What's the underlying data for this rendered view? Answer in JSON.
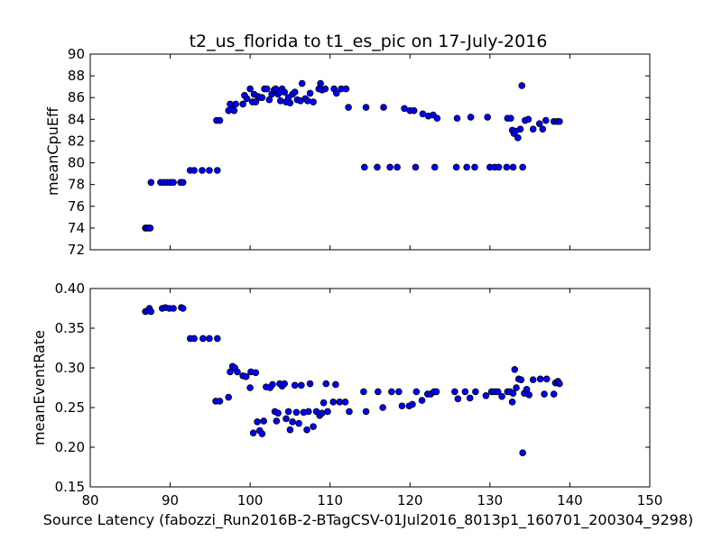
{
  "colors": {
    "marker_fill": "#0000ff",
    "marker_edge": "#000000",
    "frame": "#000000",
    "background": "#ffffff"
  },
  "chart_data": [
    {
      "type": "scatter",
      "title": "t2_us_florida to t1_es_pic on 17-July-2016",
      "xlabel": "",
      "ylabel": "meanCpuEff",
      "xlim": [
        80,
        150
      ],
      "ylim": [
        72,
        90
      ],
      "yticks": [
        "72",
        "74",
        "76",
        "78",
        "80",
        "82",
        "84",
        "86",
        "88",
        "90"
      ],
      "xticks_shown": false,
      "grid": false,
      "points": [
        [
          86.9,
          74.0
        ],
        [
          87.1,
          74.0
        ],
        [
          87.3,
          74.0
        ],
        [
          87.5,
          74.0
        ],
        [
          87.6,
          78.2
        ],
        [
          88.8,
          78.2
        ],
        [
          89.2,
          78.2
        ],
        [
          89.6,
          78.2
        ],
        [
          90.0,
          78.2
        ],
        [
          90.4,
          78.2
        ],
        [
          91.3,
          78.2
        ],
        [
          91.6,
          78.2
        ],
        [
          92.5,
          79.3
        ],
        [
          93.0,
          79.3
        ],
        [
          94.0,
          79.3
        ],
        [
          94.9,
          79.3
        ],
        [
          95.9,
          79.3
        ],
        [
          95.8,
          83.9
        ],
        [
          96.2,
          83.9
        ],
        [
          97.3,
          84.8
        ],
        [
          97.5,
          85.4
        ],
        [
          97.8,
          84.9
        ],
        [
          98.0,
          84.8
        ],
        [
          98.2,
          85.4
        ],
        [
          99.1,
          85.4
        ],
        [
          99.3,
          86.2
        ],
        [
          99.6,
          85.9
        ],
        [
          100.0,
          86.8
        ],
        [
          100.3,
          85.6
        ],
        [
          100.5,
          86.3
        ],
        [
          100.7,
          85.6
        ],
        [
          101.0,
          86.1
        ],
        [
          101.2,
          86.0
        ],
        [
          101.5,
          86.0
        ],
        [
          101.8,
          86.8
        ],
        [
          102.1,
          86.8
        ],
        [
          102.4,
          85.8
        ],
        [
          102.7,
          86.3
        ],
        [
          103.0,
          86.7
        ],
        [
          103.2,
          86.8
        ],
        [
          103.5,
          86.3
        ],
        [
          103.7,
          86.5
        ],
        [
          103.8,
          85.7
        ],
        [
          104.0,
          86.8
        ],
        [
          104.3,
          86.5
        ],
        [
          104.5,
          85.6
        ],
        [
          104.8,
          86.0
        ],
        [
          105.0,
          85.5
        ],
        [
          105.3,
          86.3
        ],
        [
          105.6,
          86.5
        ],
        [
          105.9,
          85.8
        ],
        [
          106.3,
          85.7
        ],
        [
          106.5,
          87.3
        ],
        [
          106.9,
          85.9
        ],
        [
          107.2,
          85.7
        ],
        [
          107.5,
          86.4
        ],
        [
          107.9,
          85.6
        ],
        [
          108.6,
          86.8
        ],
        [
          108.8,
          87.3
        ],
        [
          109.0,
          86.7
        ],
        [
          109.4,
          86.8
        ],
        [
          110.5,
          86.8
        ],
        [
          110.8,
          86.4
        ],
        [
          111.4,
          86.8
        ],
        [
          112.0,
          86.8
        ],
        [
          112.3,
          85.1
        ],
        [
          114.5,
          85.1
        ],
        [
          116.7,
          85.1
        ],
        [
          119.3,
          85.0
        ],
        [
          120.0,
          84.8
        ],
        [
          120.5,
          84.8
        ],
        [
          121.6,
          84.5
        ],
        [
          122.3,
          84.3
        ],
        [
          122.9,
          84.4
        ],
        [
          123.4,
          84.1
        ],
        [
          125.9,
          84.1
        ],
        [
          127.6,
          84.2
        ],
        [
          129.7,
          84.2
        ],
        [
          132.2,
          84.1
        ],
        [
          132.6,
          84.1
        ],
        [
          132.8,
          83.0
        ],
        [
          133.0,
          82.7
        ],
        [
          133.2,
          82.9
        ],
        [
          133.5,
          82.3
        ],
        [
          133.8,
          83.1
        ],
        [
          134.0,
          87.1
        ],
        [
          134.4,
          83.9
        ],
        [
          134.8,
          84.0
        ],
        [
          135.4,
          83.1
        ],
        [
          136.2,
          83.6
        ],
        [
          136.6,
          83.1
        ],
        [
          137.0,
          83.9
        ],
        [
          138.0,
          83.8
        ],
        [
          138.4,
          83.8
        ],
        [
          138.7,
          83.8
        ],
        [
          114.3,
          79.6
        ],
        [
          115.9,
          79.6
        ],
        [
          117.5,
          79.6
        ],
        [
          118.4,
          79.6
        ],
        [
          120.7,
          79.6
        ],
        [
          123.1,
          79.6
        ],
        [
          125.8,
          79.6
        ],
        [
          127.1,
          79.6
        ],
        [
          128.1,
          79.6
        ],
        [
          130.0,
          79.6
        ],
        [
          130.6,
          79.6
        ],
        [
          131.1,
          79.6
        ],
        [
          132.1,
          79.6
        ],
        [
          132.9,
          79.6
        ],
        [
          134.1,
          79.6
        ]
      ]
    },
    {
      "type": "scatter",
      "title": "",
      "xlabel": "Source Latency (fabozzi_Run2016B-2-BTagCSV-01Jul2016_8013p1_160701_200304_9298)",
      "ylabel": "meanEventRate",
      "xlim": [
        80,
        150
      ],
      "ylim": [
        0.15,
        0.4
      ],
      "xticks": [
        "80",
        "90",
        "100",
        "110",
        "120",
        "130",
        "140",
        "150"
      ],
      "yticks": [
        "0.15",
        "0.20",
        "0.25",
        "0.30",
        "0.35",
        "0.40"
      ],
      "grid": false,
      "points": [
        [
          86.9,
          0.371
        ],
        [
          87.2,
          0.372
        ],
        [
          87.4,
          0.375
        ],
        [
          87.6,
          0.371
        ],
        [
          89.0,
          0.375
        ],
        [
          89.4,
          0.376
        ],
        [
          89.9,
          0.375
        ],
        [
          90.4,
          0.375
        ],
        [
          91.4,
          0.376
        ],
        [
          91.6,
          0.375
        ],
        [
          92.5,
          0.337
        ],
        [
          93.0,
          0.337
        ],
        [
          94.1,
          0.337
        ],
        [
          94.9,
          0.337
        ],
        [
          95.9,
          0.337
        ],
        [
          95.7,
          0.258
        ],
        [
          96.2,
          0.258
        ],
        [
          97.3,
          0.263
        ],
        [
          97.5,
          0.295
        ],
        [
          97.8,
          0.302
        ],
        [
          98.1,
          0.3
        ],
        [
          98.4,
          0.295
        ],
        [
          99.1,
          0.29
        ],
        [
          99.5,
          0.289
        ],
        [
          100.0,
          0.275
        ],
        [
          100.1,
          0.295
        ],
        [
          100.4,
          0.218
        ],
        [
          100.7,
          0.294
        ],
        [
          100.9,
          0.232
        ],
        [
          101.2,
          0.221
        ],
        [
          101.5,
          0.217
        ],
        [
          101.7,
          0.233
        ],
        [
          102.0,
          0.276
        ],
        [
          102.5,
          0.275
        ],
        [
          102.8,
          0.279
        ],
        [
          103.1,
          0.245
        ],
        [
          103.3,
          0.233
        ],
        [
          103.5,
          0.243
        ],
        [
          103.7,
          0.28
        ],
        [
          104.0,
          0.277
        ],
        [
          104.3,
          0.28
        ],
        [
          104.5,
          0.236
        ],
        [
          104.8,
          0.245
        ],
        [
          105.0,
          0.222
        ],
        [
          105.3,
          0.232
        ],
        [
          105.6,
          0.278
        ],
        [
          105.8,
          0.244
        ],
        [
          106.1,
          0.23
        ],
        [
          106.4,
          0.278
        ],
        [
          106.7,
          0.244
        ],
        [
          107.1,
          0.222
        ],
        [
          107.3,
          0.245
        ],
        [
          107.5,
          0.28
        ],
        [
          107.9,
          0.226
        ],
        [
          108.3,
          0.245
        ],
        [
          108.7,
          0.24
        ],
        [
          109.0,
          0.243
        ],
        [
          109.2,
          0.256
        ],
        [
          109.5,
          0.28
        ],
        [
          109.7,
          0.245
        ],
        [
          110.4,
          0.257
        ],
        [
          110.7,
          0.279
        ],
        [
          111.2,
          0.257
        ],
        [
          111.9,
          0.257
        ],
        [
          112.4,
          0.245
        ],
        [
          114.2,
          0.27
        ],
        [
          114.5,
          0.245
        ],
        [
          116.0,
          0.27
        ],
        [
          116.6,
          0.25
        ],
        [
          117.7,
          0.27
        ],
        [
          118.6,
          0.27
        ],
        [
          119.0,
          0.252
        ],
        [
          119.9,
          0.252
        ],
        [
          120.3,
          0.254
        ],
        [
          120.8,
          0.27
        ],
        [
          121.5,
          0.259
        ],
        [
          122.2,
          0.267
        ],
        [
          122.6,
          0.267
        ],
        [
          123.0,
          0.27
        ],
        [
          123.3,
          0.27
        ],
        [
          125.6,
          0.27
        ],
        [
          126.0,
          0.261
        ],
        [
          126.9,
          0.27
        ],
        [
          127.5,
          0.262
        ],
        [
          128.2,
          0.27
        ],
        [
          129.5,
          0.265
        ],
        [
          130.2,
          0.27
        ],
        [
          130.6,
          0.27
        ],
        [
          131.0,
          0.27
        ],
        [
          131.5,
          0.264
        ],
        [
          132.2,
          0.27
        ],
        [
          132.5,
          0.27
        ],
        [
          132.8,
          0.257
        ],
        [
          132.9,
          0.268
        ],
        [
          133.1,
          0.298
        ],
        [
          133.3,
          0.275
        ],
        [
          133.6,
          0.286
        ],
        [
          133.9,
          0.285
        ],
        [
          134.1,
          0.193
        ],
        [
          134.3,
          0.268
        ],
        [
          134.6,
          0.273
        ],
        [
          134.9,
          0.266
        ],
        [
          135.4,
          0.285
        ],
        [
          136.3,
          0.286
        ],
        [
          136.8,
          0.267
        ],
        [
          137.1,
          0.286
        ],
        [
          138.0,
          0.267
        ],
        [
          138.2,
          0.281
        ],
        [
          138.5,
          0.283
        ],
        [
          138.7,
          0.28
        ]
      ]
    }
  ]
}
